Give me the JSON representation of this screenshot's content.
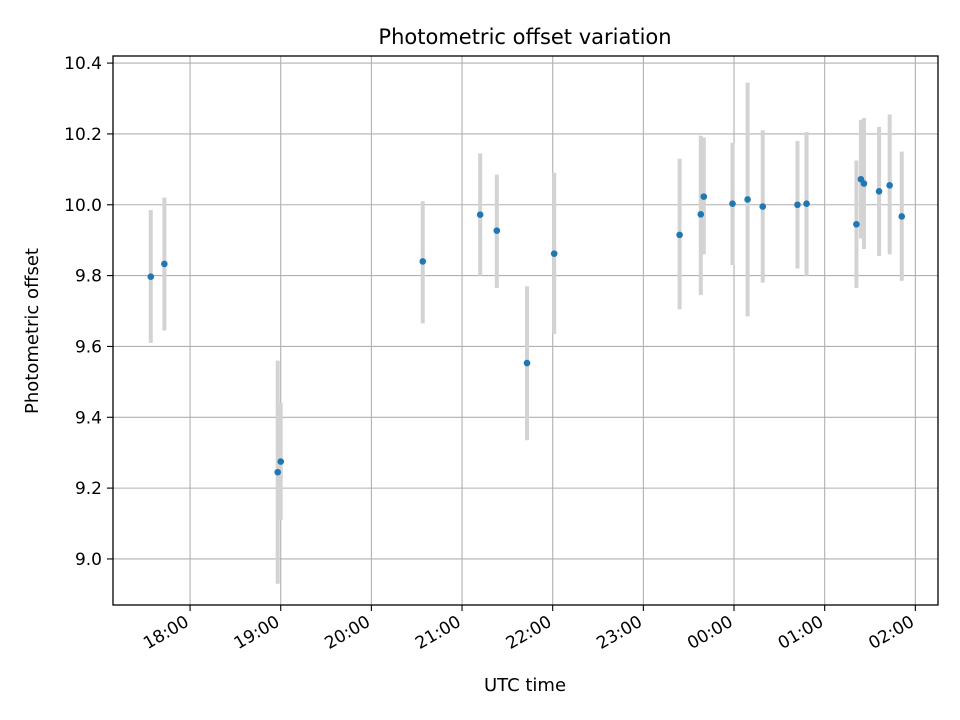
{
  "chart_data": {
    "type": "scatter",
    "title": "Photometric offset variation",
    "xlabel": "UTC time",
    "ylabel": "Photometric offset",
    "xlim": [
      "17:09",
      "02:15"
    ],
    "ylim": [
      8.87,
      10.42
    ],
    "grid": true,
    "x_ticks": [
      "18:00",
      "19:00",
      "20:00",
      "21:00",
      "22:00",
      "23:00",
      "00:00",
      "01:00",
      "02:00"
    ],
    "y_ticks": [
      "9.0",
      "9.2",
      "9.4",
      "9.6",
      "9.8",
      "10.0",
      "10.2",
      "10.4"
    ],
    "colors": {
      "marker": "#1f77b4",
      "errorbar": "#d3d3d3",
      "grid": "#b0b0b0",
      "axes": "#000000"
    },
    "points": [
      {
        "x": "17:34",
        "y": 9.797,
        "y_low": 9.61,
        "y_high": 9.985
      },
      {
        "x": "17:43",
        "y": 9.833,
        "y_low": 9.645,
        "y_high": 10.02
      },
      {
        "x": "18:58",
        "y": 9.245,
        "y_low": 8.93,
        "y_high": 9.56
      },
      {
        "x": "19:00",
        "y": 9.275,
        "y_low": 9.11,
        "y_high": 9.44
      },
      {
        "x": "20:34",
        "y": 9.84,
        "y_low": 9.665,
        "y_high": 10.01
      },
      {
        "x": "21:12",
        "y": 9.972,
        "y_low": 9.8,
        "y_high": 10.145
      },
      {
        "x": "21:23",
        "y": 9.927,
        "y_low": 9.765,
        "y_high": 10.085
      },
      {
        "x": "21:43",
        "y": 9.553,
        "y_low": 9.335,
        "y_high": 9.77
      },
      {
        "x": "22:01",
        "y": 9.862,
        "y_low": 9.635,
        "y_high": 10.09
      },
      {
        "x": "23:24",
        "y": 9.915,
        "y_low": 9.705,
        "y_high": 10.13
      },
      {
        "x": "23:38",
        "y": 9.973,
        "y_low": 9.745,
        "y_high": 10.195
      },
      {
        "x": "23:40",
        "y": 10.023,
        "y_low": 9.86,
        "y_high": 10.19
      },
      {
        "x": "23:59",
        "y": 10.003,
        "y_low": 9.83,
        "y_high": 10.175
      },
      {
        "x": "00:09",
        "y": 10.015,
        "y_low": 9.685,
        "y_high": 10.345
      },
      {
        "x": "00:19",
        "y": 9.995,
        "y_low": 9.78,
        "y_high": 10.21
      },
      {
        "x": "00:42",
        "y": 10.0,
        "y_low": 9.82,
        "y_high": 10.18
      },
      {
        "x": "00:48",
        "y": 10.003,
        "y_low": 9.8,
        "y_high": 10.205
      },
      {
        "x": "01:21",
        "y": 9.945,
        "y_low": 9.765,
        "y_high": 10.125
      },
      {
        "x": "01:24",
        "y": 10.072,
        "y_low": 9.905,
        "y_high": 10.24
      },
      {
        "x": "01:26",
        "y": 10.06,
        "y_low": 9.875,
        "y_high": 10.245
      },
      {
        "x": "01:36",
        "y": 10.038,
        "y_low": 9.855,
        "y_high": 10.22
      },
      {
        "x": "01:43",
        "y": 10.055,
        "y_low": 9.86,
        "y_high": 10.255
      },
      {
        "x": "01:51",
        "y": 9.967,
        "y_low": 9.785,
        "y_high": 10.15
      }
    ]
  }
}
